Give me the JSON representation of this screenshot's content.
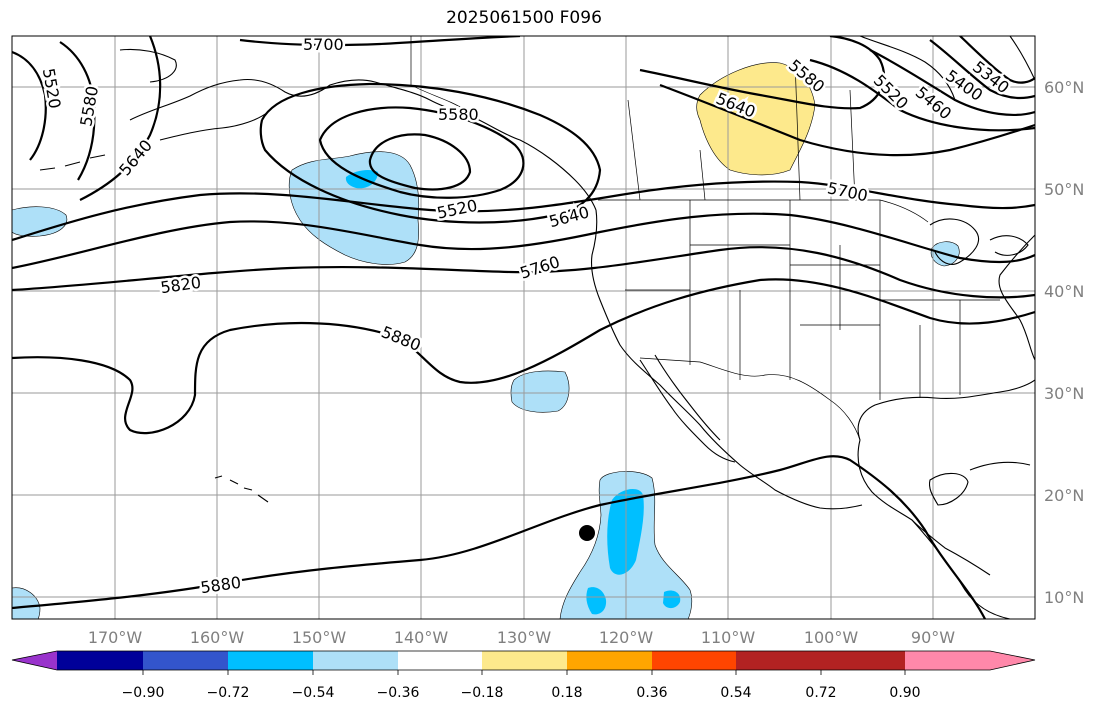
{
  "title": "2025061500 F096",
  "longitude_labels": [
    "170°W",
    "160°W",
    "150°W",
    "140°W",
    "130°W",
    "120°W",
    "110°W",
    "100°W",
    "90°W"
  ],
  "latitude_labels": [
    "10°N",
    "20°N",
    "30°N",
    "40°N",
    "50°N",
    "60°N"
  ],
  "contour_labels": {
    "c5520_nw": "5520",
    "c5580_nw": "5580",
    "c5640_nw": "5640",
    "c5700_top": "5700",
    "c5580_low": "5580",
    "c5520_low": "5520",
    "c5640_ak": "5640",
    "c5760": "5760",
    "c5820": "5820",
    "c5880_mid": "5880",
    "c5880_south": "5880",
    "c5580_ne": "5580",
    "c5640_ne": "5640",
    "c5520_ne": "5520",
    "c5460_ne": "5460",
    "c5400_ne": "5400",
    "c5340_ne": "5340",
    "c5700_ne": "5700"
  },
  "colorbar": {
    "colors": [
      "#9933cc",
      "#000099",
      "#3355cc",
      "#00bfff",
      "#aee0f8",
      "#ffffff",
      "#fde98c",
      "#ffa500",
      "#ff4500",
      "#b22222",
      "#ff88aa"
    ],
    "tick_labels": [
      "−0.90",
      "−0.72",
      "−0.54",
      "−0.36",
      "−0.18",
      "0.18",
      "0.36",
      "0.54",
      "0.72",
      "0.90"
    ]
  },
  "marker": "storm-position-dot"
}
